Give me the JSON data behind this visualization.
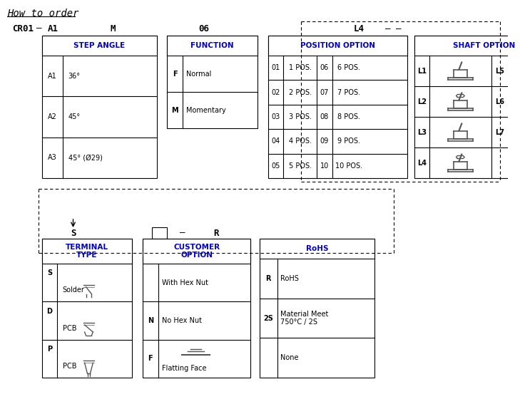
{
  "title": "How to order",
  "bg_color": "#ffffff",
  "blue_color": "#0000CC",
  "black_color": "#000000",
  "gray_color": "#888888",
  "light_gray": "#cccccc",
  "code_line": {
    "parts": [
      "CR01",
      "—",
      "A1",
      "M",
      "06",
      "L4",
      "— —"
    ],
    "labels": [
      "CR01",
      "—",
      "A1",
      "M",
      "06",
      "L4",
      ""
    ]
  },
  "step_angle": {
    "header": "STEP ANGLE",
    "rows": [
      [
        "A1",
        "36°"
      ],
      [
        "A2",
        "45°"
      ],
      [
        "A3",
        "45° (Ø29)"
      ]
    ]
  },
  "function": {
    "header": "FUNCTION",
    "rows": [
      [
        "F",
        "Normal"
      ],
      [
        "M",
        "Momentary"
      ]
    ]
  },
  "position_option": {
    "header": "POSITION OPTION",
    "rows": [
      [
        "01",
        "1 POS.",
        "06",
        "6 POS."
      ],
      [
        "02",
        "2 POS.",
        "07",
        "7 POS."
      ],
      [
        "03",
        "3 POS.",
        "08",
        "8 POS."
      ],
      [
        "04",
        "4 POS.",
        "09",
        "9 POS."
      ],
      [
        "05",
        "5 POS.",
        "10",
        "10 POS."
      ]
    ]
  },
  "shaft_option": {
    "header": "SHAFT OPTION",
    "labels": [
      "L1",
      "L5",
      "L2",
      "L6",
      "L3",
      "L7",
      "L4"
    ]
  },
  "terminal_type": {
    "header": "TERMINAL\nTYPE",
    "rows": [
      [
        "S",
        "Solder"
      ],
      [
        "D",
        "PCB"
      ],
      [
        "P",
        "PCB"
      ]
    ]
  },
  "customer_option": {
    "header": "CUSTOMER\nOPTION",
    "rows": [
      [
        "",
        "With Hex Nut"
      ],
      [
        "N",
        "No Hex Nut"
      ],
      [
        "F",
        "Flatting Face"
      ]
    ]
  },
  "rohs": {
    "header": "RoHS",
    "rows": [
      [
        "R",
        "RoHS"
      ],
      [
        "2S",
        "Material Meet\n750°C / 2S"
      ],
      [
        "",
        "None"
      ]
    ]
  }
}
